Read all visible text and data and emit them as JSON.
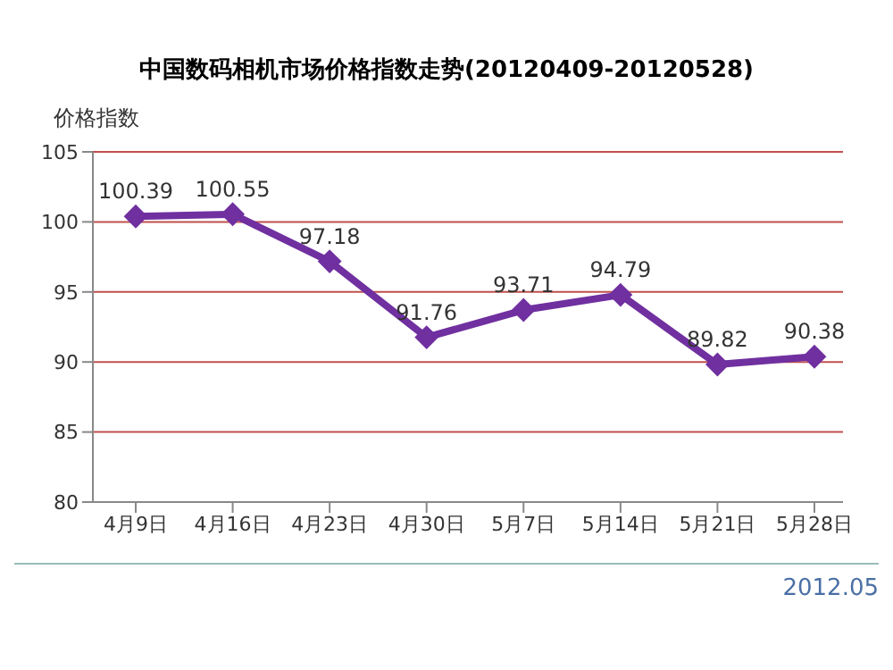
{
  "chart_data": {
    "type": "line",
    "title": "中国数码相机市场价格指数走势(20120409-20120528)",
    "ylabel": "价格指数",
    "categories": [
      "4月9日",
      "4月16日",
      "4月23日",
      "4月30日",
      "5月7日",
      "5月14日",
      "5月21日",
      "5月28日"
    ],
    "series": [
      {
        "color": "#7030a0",
        "values": [
          100.39,
          100.55,
          97.18,
          91.76,
          93.71,
          94.79,
          89.82,
          90.38
        ]
      }
    ],
    "ylim": [
      80,
      105
    ],
    "yticks": [
      80,
      85,
      90,
      95,
      100,
      105
    ],
    "grid": "y",
    "marker": "diamond",
    "line_style": "solid",
    "data_labels": true,
    "legend": false,
    "annotations": [
      "2012.05"
    ]
  }
}
